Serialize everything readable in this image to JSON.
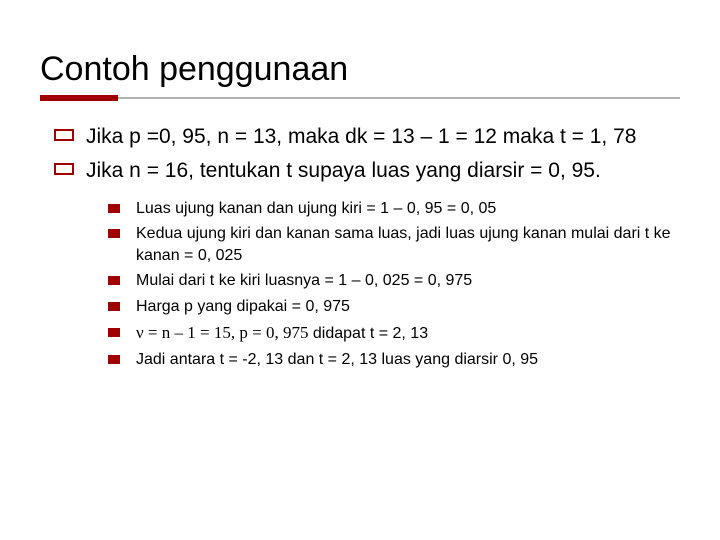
{
  "title": "Contoh penggunaan",
  "colors": {
    "accent": "#a00000",
    "underline_gray": "#b0b0b0",
    "text": "#000000",
    "background": "#ffffff"
  },
  "typography": {
    "title_fontsize": 34,
    "outer_fontsize": 21,
    "inner_fontsize": 16,
    "font_family": "Verdana"
  },
  "outer": [
    {
      "text": "Jika p =0, 95, n = 13, maka dk = 13 – 1 = 12 maka t = 1, 78"
    },
    {
      "text": "Jika n = 16, tentukan t supaya luas yang diarsir = 0, 95."
    }
  ],
  "inner": [
    {
      "text": "Luas ujung kanan dan ujung kiri =  1 – 0, 95 = 0, 05"
    },
    {
      "text": "Kedua ujung kiri dan kanan sama luas, jadi luas ujung kanan mulai dari t ke kanan = 0, 025"
    },
    {
      "text": "Mulai dari t ke kiri luasnya = 1 – 0, 025 = 0, 975"
    },
    {
      "text": "Harga p yang dipakai = 0, 975"
    },
    {
      "prefix_serif": "ν = n – 1 = 15, p = 0, 975",
      "suffix": " didapat  t = 2, 13"
    },
    {
      "text": "Jadi antara t = -2, 13 dan t = 2, 13 luas yang diarsir 0, 95"
    }
  ]
}
